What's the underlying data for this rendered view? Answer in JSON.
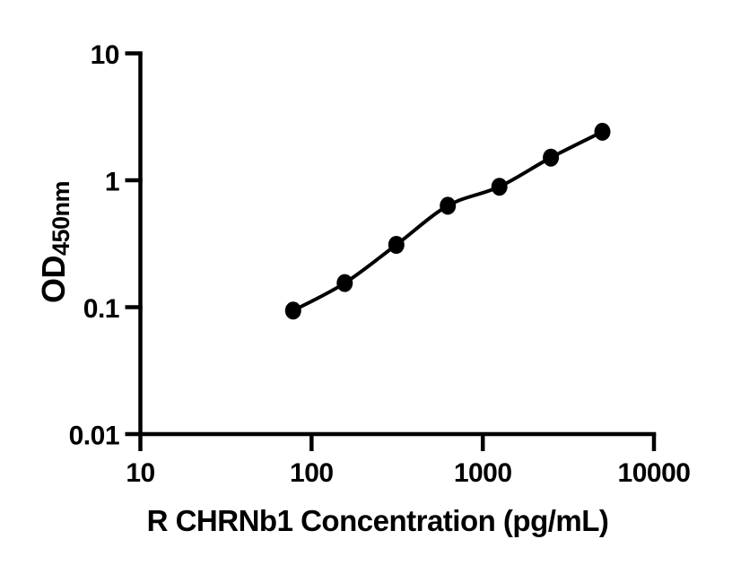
{
  "chart_data": {
    "type": "scatter",
    "title": "",
    "xlabel": "R CHRNb1 Concentration (pg/mL)",
    "ylabel_main": "OD",
    "ylabel_sub": "450nm",
    "x_scale": "log",
    "y_scale": "log",
    "xlim": [
      10,
      10000
    ],
    "ylim": [
      0.01,
      10
    ],
    "x_ticks": [
      10,
      100,
      1000,
      10000
    ],
    "x_tick_labels": [
      "10",
      "100",
      "1000",
      "10000"
    ],
    "y_ticks": [
      0.01,
      0.1,
      1,
      10
    ],
    "y_tick_labels": [
      "0.01",
      "0.1",
      "1",
      "10"
    ],
    "grid": false,
    "legend": false,
    "marker": "filled-circle",
    "line": "smooth-fit",
    "series": [
      {
        "x": [
          78.1,
          156.3,
          312.5,
          625,
          1250,
          2500,
          5000
        ],
        "y": [
          0.094,
          0.155,
          0.31,
          0.63,
          0.89,
          1.51,
          2.41
        ]
      }
    ],
    "colors": {
      "ink": "#000000",
      "background": "#ffffff"
    }
  }
}
